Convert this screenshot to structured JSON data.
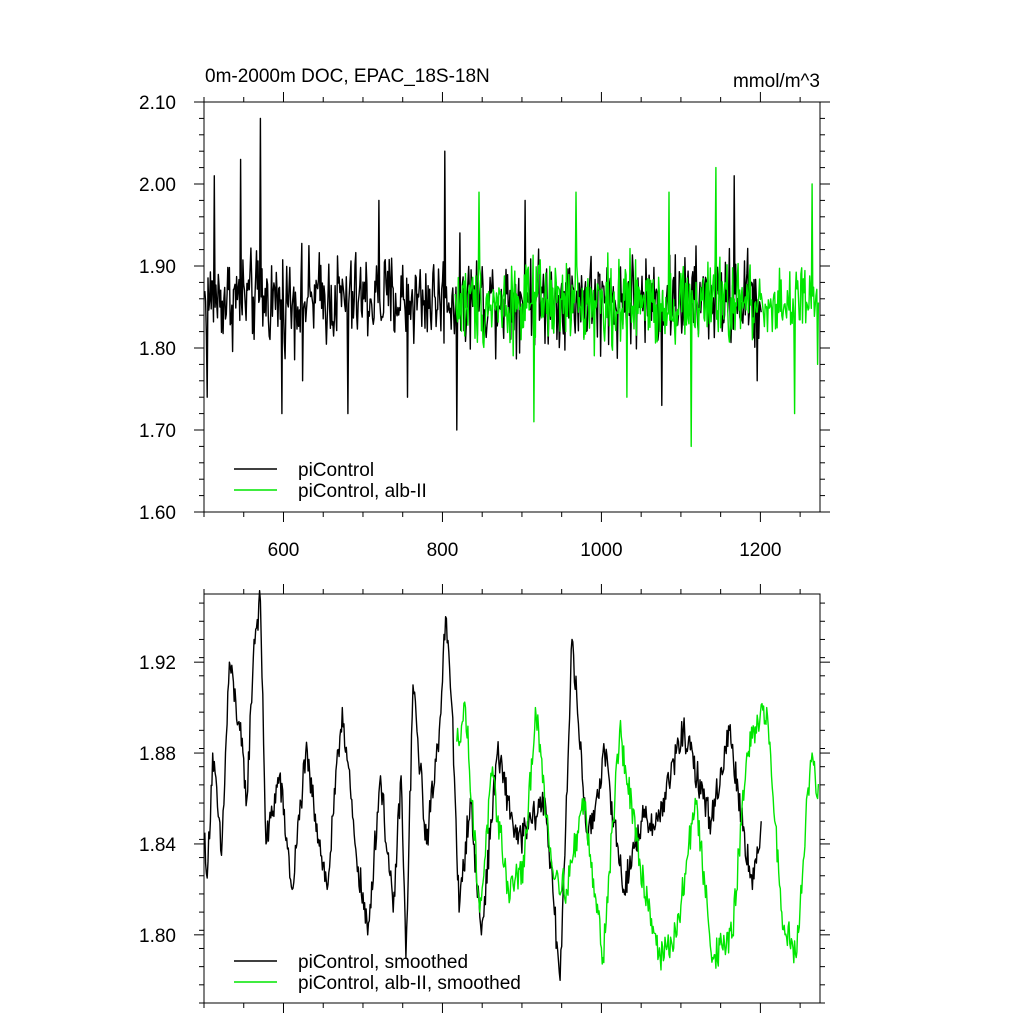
{
  "chart_data": [
    {
      "type": "line",
      "title": "0m-2000m DOC, EPAC_18S-18N",
      "units": "mmol/m^3",
      "xlim": [
        500,
        1275
      ],
      "ylim": [
        1.6,
        2.1
      ],
      "xticks": [
        600,
        800,
        1000,
        1200
      ],
      "yticks": [
        1.6,
        1.7,
        1.8,
        1.9,
        2.0,
        2.1
      ],
      "ytick_labels": [
        "1.60",
        "1.70",
        "1.80",
        "1.90",
        "2.00",
        "2.10"
      ],
      "xtick_labels": [
        "600",
        "800",
        "1000",
        "1200"
      ],
      "legend": "bottom-left",
      "series": [
        {
          "name": "piControl",
          "color": "#000000",
          "x_start": 501,
          "x_end": 1201,
          "mean": 1.86,
          "amplitude": 0.055,
          "anchor_points": [
            [
              504,
              1.74
            ],
            [
              513,
              2.01
            ],
            [
              546,
              2.03
            ],
            [
              571,
              2.08
            ],
            [
              598,
              1.72
            ],
            [
              624,
              1.76
            ],
            [
              681,
              1.72
            ],
            [
              720,
              1.98
            ],
            [
              756,
              1.74
            ],
            [
              803,
              2.04
            ],
            [
              818,
              1.7
            ],
            [
              904,
              1.98
            ],
            [
              999,
              1.79
            ],
            [
              1076,
              1.73
            ],
            [
              1167,
              2.01
            ],
            [
              1196,
              1.76
            ]
          ]
        },
        {
          "name": "piControl, alb-II",
          "color": "#00e600",
          "x_start": 816,
          "x_end": 1273,
          "mean": 1.855,
          "amplitude": 0.05,
          "anchor_points": [
            [
              846,
              1.99
            ],
            [
              915,
              1.71
            ],
            [
              968,
              1.99
            ],
            [
              1032,
              1.74
            ],
            [
              1085,
              1.99
            ],
            [
              1113,
              1.68
            ],
            [
              1144,
              2.02
            ],
            [
              1243,
              1.72
            ],
            [
              1265,
              2.0
            ],
            [
              1272,
              1.78
            ]
          ]
        }
      ]
    },
    {
      "type": "line",
      "title": "",
      "xlim": [
        500,
        1275
      ],
      "ylim": [
        1.77,
        1.95
      ],
      "xticks": [
        600,
        800,
        1000,
        1200
      ],
      "yticks": [
        1.8,
        1.84,
        1.88,
        1.92
      ],
      "ytick_labels": [
        "1.80",
        "1.84",
        "1.88",
        "1.92"
      ],
      "legend": "bottom-left",
      "series": [
        {
          "name": "piControl, smoothed",
          "color": "#000000",
          "x_start": 501,
          "x_end": 1201,
          "anchor_points": [
            [
              501,
              1.845
            ],
            [
              504,
              1.825
            ],
            [
              511,
              1.88
            ],
            [
              522,
              1.835
            ],
            [
              532,
              1.92
            ],
            [
              545,
              1.89
            ],
            [
              554,
              1.86
            ],
            [
              563,
              1.93
            ],
            [
              571,
              1.947
            ],
            [
              578,
              1.84
            ],
            [
              595,
              1.87
            ],
            [
              611,
              1.82
            ],
            [
              628,
              1.88
            ],
            [
              655,
              1.82
            ],
            [
              674,
              1.9
            ],
            [
              690,
              1.84
            ],
            [
              706,
              1.8
            ],
            [
              722,
              1.87
            ],
            [
              738,
              1.81
            ],
            [
              748,
              1.87
            ],
            [
              754,
              1.79
            ],
            [
              763,
              1.91
            ],
            [
              780,
              1.84
            ],
            [
              796,
              1.89
            ],
            [
              804,
              1.94
            ],
            [
              812,
              1.9
            ],
            [
              821,
              1.81
            ],
            [
              835,
              1.86
            ],
            [
              849,
              1.8
            ],
            [
              869,
              1.88
            ],
            [
              895,
              1.84
            ],
            [
              929,
              1.86
            ],
            [
              948,
              1.78
            ],
            [
              963,
              1.93
            ],
            [
              983,
              1.84
            ],
            [
              1004,
              1.88
            ],
            [
              1028,
              1.82
            ],
            [
              1050,
              1.85
            ],
            [
              1071,
              1.85
            ],
            [
              1103,
              1.89
            ],
            [
              1138,
              1.85
            ],
            [
              1161,
              1.89
            ],
            [
              1190,
              1.82
            ],
            [
              1201,
              1.85
            ]
          ]
        },
        {
          "name": "piControl, alb-II, smoothed",
          "color": "#00e600",
          "x_start": 818,
          "x_end": 1273,
          "anchor_points": [
            [
              818,
              1.885
            ],
            [
              829,
              1.9
            ],
            [
              847,
              1.81
            ],
            [
              862,
              1.87
            ],
            [
              883,
              1.82
            ],
            [
              903,
              1.83
            ],
            [
              917,
              1.9
            ],
            [
              938,
              1.83
            ],
            [
              956,
              1.82
            ],
            [
              978,
              1.86
            ],
            [
              1002,
              1.79
            ],
            [
              1023,
              1.89
            ],
            [
              1049,
              1.83
            ],
            [
              1074,
              1.79
            ],
            [
              1095,
              1.8
            ],
            [
              1118,
              1.86
            ],
            [
              1140,
              1.79
            ],
            [
              1165,
              1.8
            ],
            [
              1183,
              1.88
            ],
            [
              1208,
              1.9
            ],
            [
              1227,
              1.81
            ],
            [
              1245,
              1.79
            ],
            [
              1257,
              1.85
            ],
            [
              1265,
              1.88
            ],
            [
              1272,
              1.86
            ]
          ]
        }
      ]
    }
  ]
}
